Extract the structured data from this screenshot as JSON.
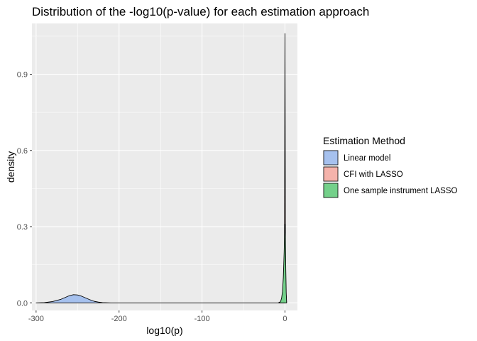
{
  "chart_data": {
    "type": "area",
    "subtype": "density",
    "title": "Distribution of the -log10(p-value) for each estimation approach",
    "xlabel": "log10(p)",
    "ylabel": "density",
    "xlim": [
      -305,
      15
    ],
    "ylim": [
      -0.03,
      1.1
    ],
    "x_ticks": [
      -300,
      -200,
      -100,
      0
    ],
    "x_tick_labels": [
      "-300",
      "-200",
      "-100",
      "0"
    ],
    "y_ticks": [
      0.0,
      0.3,
      0.6,
      0.9
    ],
    "y_tick_labels": [
      "0.0",
      "0.3",
      "0.6",
      "0.9"
    ],
    "background": "#ebebeb",
    "grid": true,
    "legend": {
      "title": "Estimation Method",
      "placement": "right"
    },
    "series": [
      {
        "name": "Linear model",
        "color": "#a6c1ee",
        "x": [
          -300,
          -290,
          -280,
          -270,
          -265,
          -260,
          -255,
          -250,
          -245,
          -240,
          -235,
          -230,
          -225,
          -220,
          -210,
          -200,
          -150,
          -100,
          -50,
          -10,
          -5,
          -2,
          -1,
          0
        ],
        "y": [
          0.0,
          0.001,
          0.005,
          0.014,
          0.021,
          0.028,
          0.032,
          0.031,
          0.026,
          0.019,
          0.012,
          0.006,
          0.003,
          0.001,
          0.0,
          0.0,
          0.0,
          0.0,
          0.0,
          0.0,
          0.0,
          0.0,
          0.0,
          0.0
        ]
      },
      {
        "name": "CFI with LASSO",
        "color": "#f5b3ab",
        "x": [
          -7,
          -5,
          -4,
          -3,
          -2,
          -1.5,
          -1,
          -0.6,
          -0.4,
          -0.2,
          0,
          0.2,
          0.4,
          0.6,
          1,
          2
        ],
        "y": [
          0.0,
          0.002,
          0.006,
          0.015,
          0.04,
          0.08,
          0.15,
          0.25,
          0.45,
          0.78,
          1.06,
          0.78,
          0.45,
          0.2,
          0.05,
          0.0
        ]
      },
      {
        "name": "One sample instrument LASSO",
        "color": "#74d08a",
        "x": [
          -8,
          -6,
          -5,
          -4,
          -3,
          -2,
          -1.5,
          -1,
          -0.5,
          0,
          0.5,
          1,
          1.5,
          2
        ],
        "y": [
          0.0,
          0.003,
          0.008,
          0.02,
          0.045,
          0.1,
          0.15,
          0.2,
          0.27,
          0.31,
          0.26,
          0.13,
          0.04,
          0.0
        ]
      }
    ]
  }
}
